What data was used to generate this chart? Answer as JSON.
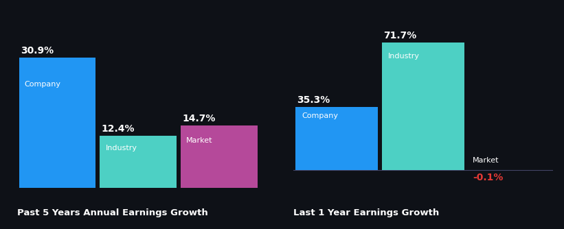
{
  "background_color": "#0e1117",
  "chart1": {
    "title": "Past 5 Years Annual Earnings Growth",
    "bars": [
      {
        "label": "Company",
        "value": 30.9,
        "color": "#2196f3"
      },
      {
        "label": "Industry",
        "value": 12.4,
        "color": "#4dd0c4"
      },
      {
        "label": "Market",
        "value": 14.7,
        "color": "#b5499a"
      }
    ],
    "ylim": [
      0,
      38
    ]
  },
  "chart2": {
    "title": "Last 1 Year Earnings Growth",
    "bars": [
      {
        "label": "Company",
        "value": 35.3,
        "color": "#2196f3"
      },
      {
        "label": "Industry",
        "value": 71.7,
        "color": "#4dd0c4"
      },
      {
        "label": "Market",
        "value": -0.1,
        "color": null
      }
    ],
    "market_label_color": "#ffffff",
    "market_value_color": "#e53935",
    "ylim": [
      -10,
      80
    ]
  },
  "baseline_color": "#444466",
  "text_color": "#ffffff",
  "value_fontsize": 10,
  "label_fontsize": 8,
  "title_fontsize": 9.5
}
